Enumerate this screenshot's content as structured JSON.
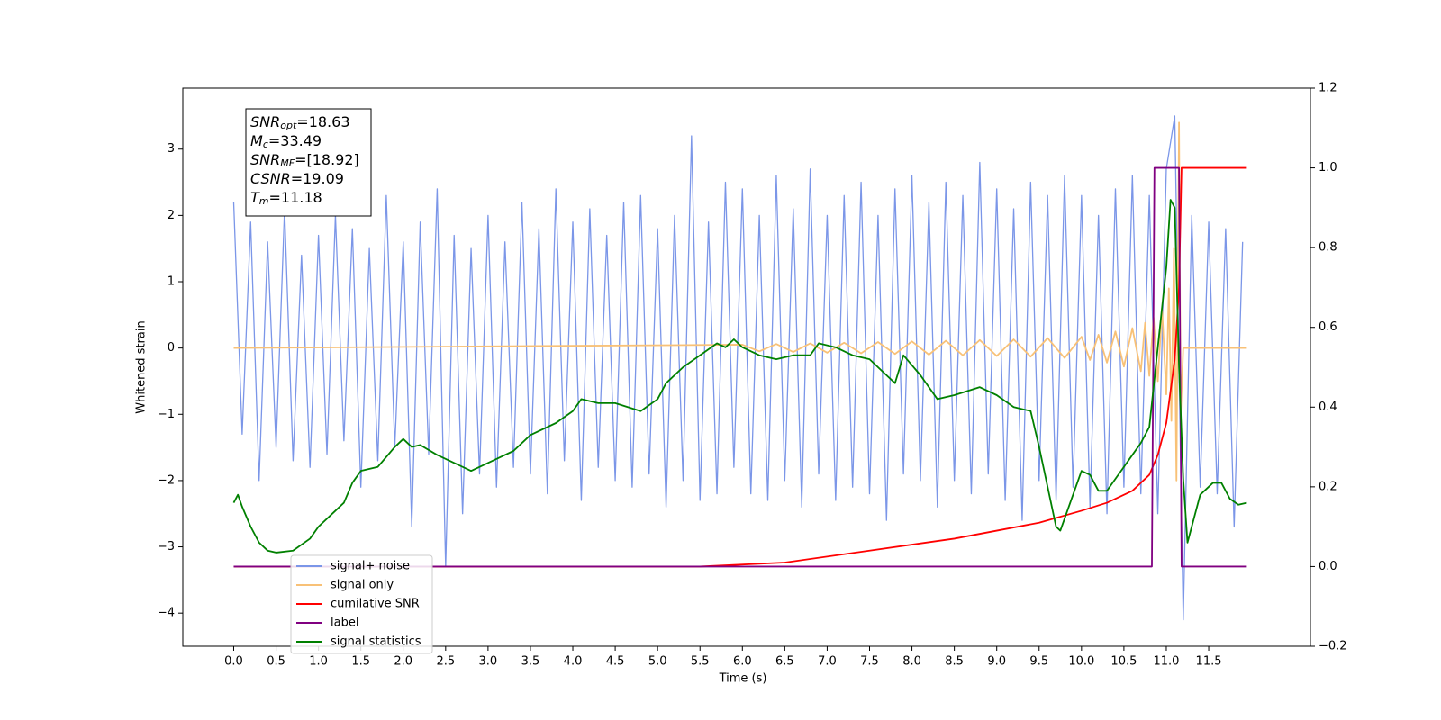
{
  "chart_data": {
    "type": "line",
    "xlabel": "Time (s)",
    "ylabel": "Whitened strain",
    "xlim": [
      -0.6,
      12.7
    ],
    "ylim": [
      -4.5,
      3.92
    ],
    "y2lim": [
      -0.2,
      1.2
    ],
    "xticks": [
      {
        "value": 0,
        "label": "0.0"
      },
      0.5,
      {
        "value": 1,
        "label": "1.0"
      },
      1.5,
      {
        "value": 2,
        "label": "2.0"
      },
      2.5,
      {
        "value": 3,
        "label": "3.0"
      },
      3.5,
      {
        "value": 4,
        "label": "4.0"
      },
      4.5,
      {
        "value": 5,
        "label": "5.0"
      },
      5.5,
      {
        "value": 6,
        "label": "6.0"
      },
      6.5,
      {
        "value": 7,
        "label": "7.0"
      },
      7.5,
      {
        "value": 8,
        "label": "8.0"
      },
      8.5,
      {
        "value": 9,
        "label": "9.0"
      },
      9.5,
      {
        "value": 10,
        "label": "10.0"
      },
      10.5,
      {
        "value": 11,
        "label": "11.0"
      },
      11.5
    ],
    "yticks": [
      {
        "value": -4,
        "label": "−4"
      },
      {
        "value": -3,
        "label": "−3"
      },
      {
        "value": -2,
        "label": "−2"
      },
      {
        "value": -1,
        "label": "−1"
      },
      0,
      1,
      2,
      3
    ],
    "y2ticks": [
      {
        "value": -0.2,
        "label": "−0.2"
      },
      {
        "value": 0,
        "label": "0.0"
      },
      0.2,
      0.4,
      0.6,
      0.8,
      {
        "value": 1,
        "label": "1.0"
      },
      1.2
    ],
    "annotation": [
      [
        "SNR",
        "opt",
        "=18.63"
      ],
      [
        "M",
        "c",
        "=33.49"
      ],
      [
        "SNR",
        "MF",
        "=[18.92]"
      ],
      [
        "CSNR",
        "",
        "=19.09"
      ],
      [
        "T",
        "m",
        "=11.18"
      ]
    ],
    "series": [
      {
        "name": "signal+ noise",
        "color": "#7b96e8",
        "x": [
          0.0,
          0.1,
          0.2,
          0.3,
          0.4,
          0.5,
          0.6,
          0.7,
          0.8,
          0.9,
          1.0,
          1.1,
          1.2,
          1.3,
          1.4,
          1.5,
          1.6,
          1.7,
          1.8,
          1.9,
          2.0,
          2.1,
          2.2,
          2.3,
          2.4,
          2.5,
          2.6,
          2.7,
          2.8,
          2.9,
          3.0,
          3.1,
          3.2,
          3.3,
          3.4,
          3.5,
          3.6,
          3.7,
          3.8,
          3.9,
          4.0,
          4.1,
          4.2,
          4.3,
          4.4,
          4.5,
          4.6,
          4.7,
          4.8,
          4.9,
          5.0,
          5.1,
          5.2,
          5.3,
          5.4,
          5.5,
          5.6,
          5.7,
          5.8,
          5.9,
          6.0,
          6.1,
          6.2,
          6.3,
          6.4,
          6.5,
          6.6,
          6.7,
          6.8,
          6.9,
          7.0,
          7.1,
          7.2,
          7.3,
          7.4,
          7.5,
          7.6,
          7.7,
          7.8,
          7.9,
          8.0,
          8.1,
          8.2,
          8.3,
          8.4,
          8.5,
          8.6,
          8.7,
          8.8,
          8.9,
          9.0,
          9.1,
          9.2,
          9.3,
          9.4,
          9.5,
          9.6,
          9.7,
          9.8,
          9.9,
          10.0,
          10.1,
          10.2,
          10.3,
          10.4,
          10.5,
          10.6,
          10.7,
          10.8,
          10.9,
          11.0,
          11.1,
          11.2,
          11.3,
          11.4,
          11.5,
          11.6,
          11.7,
          11.8,
          11.9
        ],
        "values": [
          2.2,
          -1.3,
          1.9,
          -2.0,
          1.6,
          -1.5,
          2.1,
          -1.7,
          1.4,
          -1.8,
          1.7,
          -1.6,
          2.0,
          -1.4,
          1.8,
          -2.1,
          1.5,
          -1.7,
          2.3,
          -1.5,
          1.6,
          -2.7,
          1.9,
          -1.6,
          2.4,
          -3.3,
          1.7,
          -2.5,
          1.5,
          -1.9,
          2.0,
          -2.1,
          1.6,
          -1.8,
          2.2,
          -1.9,
          1.8,
          -2.2,
          2.4,
          -1.7,
          1.9,
          -2.3,
          2.1,
          -1.8,
          1.7,
          -2.0,
          2.2,
          -2.1,
          2.3,
          -1.9,
          1.8,
          -2.4,
          2.0,
          -2.0,
          3.2,
          -2.3,
          1.9,
          -2.2,
          2.5,
          -1.8,
          2.4,
          -2.2,
          2.0,
          -2.3,
          2.6,
          -2.0,
          2.1,
          -2.4,
          2.7,
          -1.9,
          2.0,
          -2.3,
          2.3,
          -2.1,
          2.5,
          -2.2,
          2.0,
          -2.6,
          2.4,
          -1.9,
          2.6,
          -2.0,
          2.2,
          -2.4,
          2.5,
          -2.0,
          2.3,
          -2.2,
          2.8,
          -1.9,
          2.4,
          -2.3,
          2.1,
          -2.6,
          2.5,
          -2.0,
          2.3,
          -2.3,
          2.6,
          -2.1,
          2.3,
          -2.4,
          2.0,
          -2.5,
          2.4,
          -2.1,
          2.6,
          -2.2,
          2.3,
          -2.5,
          2.7,
          3.5,
          -4.1,
          2.0,
          -2.1,
          1.9,
          -2.2,
          1.8,
          -2.7,
          1.6
        ]
      },
      {
        "name": "signal only",
        "color": "#f8c177",
        "x": [
          0,
          6.0,
          6.2,
          6.4,
          6.6,
          6.8,
          7.0,
          7.2,
          7.4,
          7.6,
          7.8,
          8.0,
          8.2,
          8.4,
          8.6,
          8.8,
          9.0,
          9.2,
          9.4,
          9.6,
          9.8,
          10.0,
          10.1,
          10.2,
          10.3,
          10.4,
          10.5,
          10.6,
          10.7,
          10.75,
          10.8,
          10.85,
          10.9,
          10.95,
          11.0,
          11.03,
          11.06,
          11.09,
          11.12,
          11.15,
          11.17,
          11.2,
          11.95
        ],
        "values": [
          0,
          0.05,
          -0.05,
          0.06,
          -0.06,
          0.07,
          -0.07,
          0.08,
          -0.08,
          0.09,
          -0.09,
          0.1,
          -0.1,
          0.11,
          -0.11,
          0.12,
          -0.12,
          0.13,
          -0.13,
          0.15,
          -0.15,
          0.17,
          -0.18,
          0.2,
          -0.22,
          0.25,
          -0.28,
          0.3,
          -0.35,
          0.38,
          -0.42,
          0.46,
          -0.5,
          0.6,
          -0.7,
          0.9,
          -1.1,
          1.5,
          -2.0,
          3.4,
          -1.0,
          0,
          0
        ]
      },
      {
        "name": "cumilative SNR",
        "color": "#ff0000",
        "axis": "y2",
        "x": [
          0,
          5.5,
          6.5,
          7.5,
          8.5,
          9.0,
          9.5,
          10.0,
          10.3,
          10.6,
          10.8,
          10.9,
          11.0,
          11.1,
          11.15,
          11.18,
          11.95
        ],
        "values": [
          0,
          0,
          0.01,
          0.04,
          0.07,
          0.09,
          0.11,
          0.14,
          0.16,
          0.19,
          0.23,
          0.28,
          0.36,
          0.52,
          0.7,
          1.0,
          1.0
        ]
      },
      {
        "name": "label",
        "color": "#800080",
        "axis": "y2",
        "x": [
          0,
          10.83,
          10.86,
          11.15,
          11.18,
          11.95
        ],
        "values": [
          0,
          0,
          1,
          1,
          0,
          0
        ]
      },
      {
        "name": "signal statistics",
        "color": "#008000",
        "axis": "y2",
        "x": [
          0.0,
          0.05,
          0.1,
          0.2,
          0.3,
          0.4,
          0.5,
          0.7,
          0.9,
          1.0,
          1.2,
          1.3,
          1.4,
          1.5,
          1.7,
          1.9,
          2.0,
          2.1,
          2.2,
          2.4,
          2.6,
          2.8,
          3.0,
          3.3,
          3.5,
          3.8,
          4.0,
          4.1,
          4.3,
          4.5,
          4.8,
          5.0,
          5.1,
          5.3,
          5.5,
          5.7,
          5.8,
          5.9,
          6.0,
          6.2,
          6.4,
          6.6,
          6.8,
          6.9,
          7.1,
          7.3,
          7.5,
          7.7,
          7.8,
          7.9,
          8.1,
          8.3,
          8.5,
          8.8,
          9.0,
          9.2,
          9.4,
          9.5,
          9.6,
          9.7,
          9.75,
          9.8,
          9.9,
          10.0,
          10.1,
          10.2,
          10.3,
          10.5,
          10.6,
          10.7,
          10.8,
          10.9,
          11.0,
          11.05,
          11.1,
          11.15,
          11.2,
          11.25,
          11.3,
          11.4,
          11.55,
          11.65,
          11.75,
          11.85,
          11.95
        ],
        "values": [
          0.16,
          0.18,
          0.15,
          0.1,
          0.06,
          0.04,
          0.035,
          0.04,
          0.07,
          0.1,
          0.14,
          0.16,
          0.21,
          0.24,
          0.25,
          0.3,
          0.32,
          0.3,
          0.305,
          0.28,
          0.26,
          0.24,
          0.26,
          0.29,
          0.33,
          0.36,
          0.39,
          0.42,
          0.41,
          0.41,
          0.39,
          0.42,
          0.46,
          0.5,
          0.53,
          0.56,
          0.55,
          0.57,
          0.55,
          0.53,
          0.52,
          0.53,
          0.53,
          0.56,
          0.55,
          0.53,
          0.52,
          0.48,
          0.46,
          0.53,
          0.48,
          0.42,
          0.43,
          0.45,
          0.43,
          0.4,
          0.39,
          0.3,
          0.2,
          0.1,
          0.09,
          0.12,
          0.18,
          0.24,
          0.23,
          0.19,
          0.19,
          0.25,
          0.28,
          0.31,
          0.35,
          0.55,
          0.75,
          0.92,
          0.9,
          0.5,
          0.22,
          0.06,
          0.1,
          0.18,
          0.21,
          0.21,
          0.17,
          0.155,
          0.16
        ]
      }
    ]
  }
}
